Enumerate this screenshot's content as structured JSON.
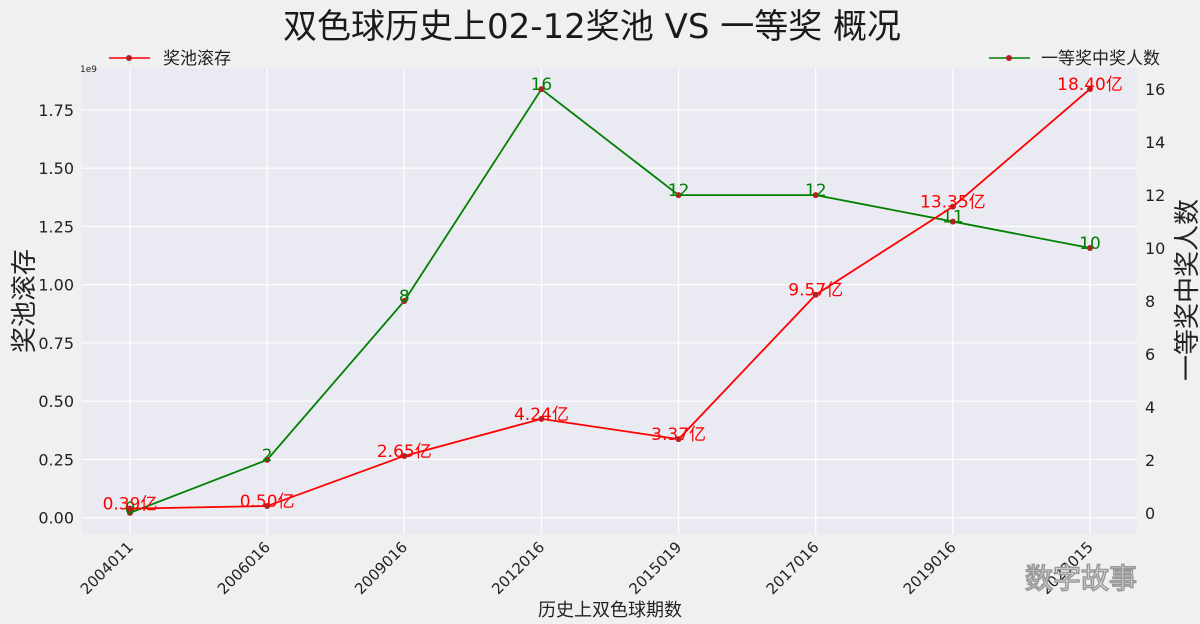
{
  "chart_data": {
    "type": "line",
    "title": "双色球历史上02-12奖池 VS 一等奖 概况",
    "xlabel": "历史上双色球期数",
    "ylabel_left": "奖池滚存",
    "ylabel_right": "一等奖中奖人数",
    "left_axis_multiplier": "1e9",
    "categories": [
      "2004011",
      "2006016",
      "2009016",
      "2012016",
      "2015019",
      "2017016",
      "2019016",
      "2023015"
    ],
    "grid": true,
    "series": [
      {
        "name": "奖池滚存",
        "axis": "left",
        "color": "#ff0000",
        "values": [
          0.039,
          0.05,
          0.265,
          0.424,
          0.337,
          0.957,
          1.335,
          1.84
        ],
        "labels": [
          "0.39亿",
          "0.50亿",
          "2.65亿",
          "4.24亿",
          "3.37亿",
          "9.57亿",
          "13.35亿",
          "18.40亿"
        ],
        "ylim": [
          -0.07,
          1.93
        ],
        "ticks": [
          "0.00",
          "0.25",
          "0.50",
          "0.75",
          "1.00",
          "1.25",
          "1.50",
          "1.75"
        ],
        "legend_position": "top-left"
      },
      {
        "name": "一等奖中奖人数",
        "axis": "right",
        "color": "#008000",
        "values": [
          0,
          2,
          8,
          16,
          12,
          12,
          11,
          10
        ],
        "labels": [
          "0",
          "2",
          "8",
          "16",
          "12",
          "12",
          "11",
          "10"
        ],
        "ylim": [
          -0.8,
          16.8
        ],
        "ticks": [
          "0",
          "2",
          "4",
          "6",
          "8",
          "10",
          "12",
          "14",
          "16"
        ],
        "legend_position": "top-right"
      }
    ]
  },
  "watermark": "数字故事"
}
